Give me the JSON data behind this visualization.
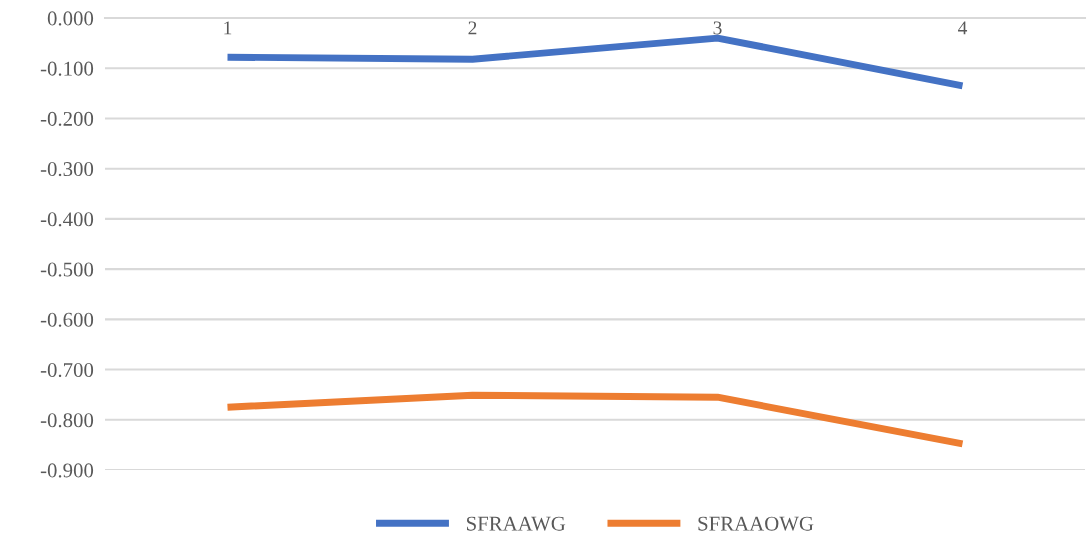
{
  "chart_data": {
    "type": "line",
    "categories": [
      "1",
      "2",
      "3",
      "4"
    ],
    "series": [
      {
        "name": "SFRAAWG",
        "color": "#4472c4",
        "values": [
          -0.078,
          -0.082,
          -0.04,
          -0.135
        ]
      },
      {
        "name": "SFRAAOWG",
        "color": "#ed7d31",
        "values": [
          -0.775,
          -0.751,
          -0.755,
          -0.848
        ]
      }
    ],
    "ylim": [
      -0.9,
      0
    ],
    "yticks": [
      {
        "value": 0,
        "label": "0.000"
      },
      {
        "value": -0.1,
        "label": "-0.100"
      },
      {
        "value": -0.2,
        "label": "-0.200"
      },
      {
        "value": -0.3,
        "label": "-0.300"
      },
      {
        "value": -0.4,
        "label": "-0.400"
      },
      {
        "value": -0.5,
        "label": "-0.500"
      },
      {
        "value": -0.6,
        "label": "-0.600"
      },
      {
        "value": -0.7,
        "label": "-0.700"
      },
      {
        "value": -0.8,
        "label": "-0.800"
      },
      {
        "value": -0.9,
        "label": "-0.900"
      }
    ],
    "grid": "y",
    "legend": "bottom",
    "marker": "none",
    "line_style": "solid"
  }
}
